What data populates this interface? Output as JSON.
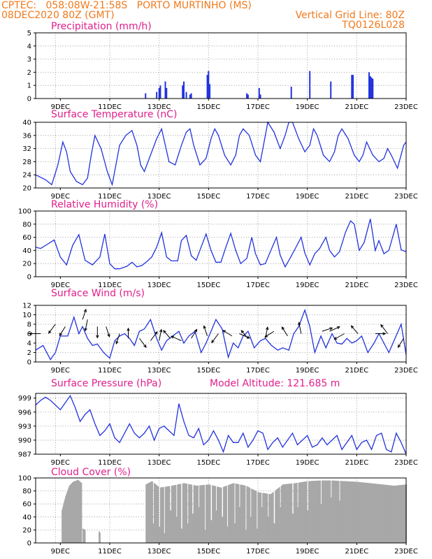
{
  "header": {
    "line1": "CPTEC:   058:08W-21:58S   PORTO MURTINHO (MS)",
    "line2_left": "08DEC2020 80Z (GMT)",
    "line2_right": "Vertical Grid Line: 80Z",
    "line3_right": "TQ0126L028"
  },
  "x_labels": [
    "9DEC",
    "11DEC",
    "13DEC",
    "15DEC",
    "17DEC",
    "19DEC",
    "21DEC",
    "23DEC"
  ],
  "colors": {
    "header": "#f07a1e",
    "title": "#e0208c",
    "series": "#2233dd",
    "cloud": "#a8a8a8"
  },
  "chart_data": [
    {
      "type": "bar",
      "title": "Precipitation (mm/h)",
      "ylim": [
        0,
        5
      ],
      "yticks": [
        0,
        1,
        2,
        3,
        4,
        5
      ],
      "xlim": [
        8.0,
        23.0
      ],
      "x": [
        12.45,
        12.9,
        13.0,
        13.05,
        13.25,
        13.3,
        13.95,
        14.0,
        14.1,
        14.25,
        14.3,
        14.95,
        15.0,
        15.05,
        16.55,
        16.6,
        17.05,
        17.1,
        18.35,
        19.1,
        19.95,
        20.8,
        20.85,
        21.5,
        21.55,
        21.6,
        21.65
      ],
      "values": [
        0.4,
        0.5,
        0.8,
        1.0,
        1.3,
        0.8,
        1.0,
        1.3,
        0.5,
        0.3,
        0.4,
        1.8,
        2.1,
        1.1,
        0.4,
        0.3,
        0.8,
        0.3,
        0.9,
        2.1,
        1.3,
        1.8,
        1.8,
        2.0,
        1.7,
        1.6,
        1.5
      ]
    },
    {
      "type": "line",
      "title": "Surface Temperature (nC)",
      "ylim": [
        20,
        40
      ],
      "yticks": [
        20,
        24,
        28,
        32,
        36,
        40
      ],
      "xlim": [
        8.0,
        23.0
      ],
      "x": [
        8.0,
        8.4,
        8.65,
        8.9,
        9.1,
        9.25,
        9.4,
        9.65,
        9.9,
        10.1,
        10.25,
        10.4,
        10.65,
        10.9,
        11.1,
        11.25,
        11.4,
        11.65,
        11.9,
        12.1,
        12.25,
        12.4,
        12.65,
        12.9,
        13.1,
        13.25,
        13.4,
        13.65,
        13.9,
        14.1,
        14.25,
        14.4,
        14.65,
        14.9,
        15.1,
        15.25,
        15.4,
        15.65,
        15.9,
        16.1,
        16.25,
        16.4,
        16.65,
        16.9,
        17.1,
        17.25,
        17.4,
        17.65,
        17.9,
        18.1,
        18.25,
        18.4,
        18.65,
        18.9,
        19.1,
        19.25,
        19.4,
        19.65,
        19.9,
        20.1,
        20.25,
        20.4,
        20.65,
        20.9,
        21.1,
        21.25,
        21.4,
        21.65,
        21.9,
        22.1,
        22.25,
        22.4,
        22.65,
        22.9,
        23.0
      ],
      "values": [
        24,
        22.5,
        21,
        27,
        34,
        31,
        25,
        22,
        21,
        23,
        30,
        36,
        32,
        25,
        21,
        27,
        33,
        36,
        37.5,
        33,
        27,
        25,
        30,
        35,
        38,
        33,
        28,
        27,
        33,
        37,
        38,
        33,
        27,
        29,
        35,
        38,
        36,
        30,
        27,
        30,
        36,
        38,
        36,
        30,
        28,
        34,
        40,
        37,
        32,
        36,
        40,
        40,
        35,
        31,
        33,
        38,
        36,
        30,
        28,
        31,
        36,
        38,
        35,
        30,
        28,
        30,
        34,
        30,
        28,
        29,
        32,
        30,
        26,
        33,
        34
      ]
    },
    {
      "type": "line",
      "title": "Relative Humidity (%)",
      "ylim": [
        0,
        100
      ],
      "yticks": [
        0,
        20,
        40,
        60,
        80,
        100
      ],
      "xlim": [
        8.0,
        23.0
      ],
      "x": [
        8.0,
        8.2,
        8.5,
        8.75,
        9.0,
        9.25,
        9.5,
        9.75,
        10.0,
        10.3,
        10.6,
        10.8,
        11.0,
        11.2,
        11.4,
        11.7,
        11.9,
        12.1,
        12.3,
        12.5,
        12.7,
        12.9,
        13.1,
        13.3,
        13.5,
        13.75,
        13.9,
        14.1,
        14.3,
        14.5,
        14.7,
        14.9,
        15.1,
        15.3,
        15.5,
        15.7,
        15.9,
        16.1,
        16.3,
        16.55,
        16.75,
        16.9,
        17.1,
        17.3,
        17.5,
        17.75,
        17.9,
        18.1,
        18.3,
        18.5,
        18.75,
        18.9,
        19.1,
        19.3,
        19.5,
        19.75,
        19.9,
        20.1,
        20.3,
        20.55,
        20.75,
        20.9,
        21.1,
        21.3,
        21.55,
        21.75,
        21.9,
        22.1,
        22.3,
        22.6,
        22.8,
        23.0
      ],
      "values": [
        45,
        43,
        50,
        56,
        30,
        18,
        48,
        64,
        25,
        18,
        30,
        65,
        20,
        12,
        12,
        16,
        22,
        15,
        17,
        23,
        30,
        45,
        67,
        30,
        24,
        24,
        55,
        63,
        32,
        25,
        45,
        65,
        40,
        22,
        22,
        45,
        66,
        40,
        20,
        28,
        60,
        35,
        18,
        20,
        38,
        60,
        33,
        15,
        28,
        42,
        60,
        36,
        18,
        35,
        43,
        60,
        40,
        30,
        38,
        68,
        85,
        80,
        40,
        52,
        88,
        40,
        55,
        35,
        40,
        80,
        41,
        38
      ]
    },
    {
      "type": "line",
      "title": "Surface Wind (m/s)",
      "ylim": [
        0,
        12
      ],
      "yticks": [
        0,
        2,
        4,
        6,
        8,
        10,
        12
      ],
      "xlim": [
        8.0,
        23.0
      ],
      "x": [
        8.0,
        8.3,
        8.6,
        8.8,
        9.0,
        9.3,
        9.55,
        9.75,
        9.9,
        10.1,
        10.3,
        10.5,
        10.75,
        11.0,
        11.2,
        11.4,
        11.6,
        11.8,
        12.0,
        12.2,
        12.4,
        12.65,
        12.9,
        13.1,
        13.3,
        13.55,
        13.8,
        14.0,
        14.2,
        14.45,
        14.7,
        14.9,
        15.1,
        15.3,
        15.55,
        15.8,
        16.0,
        16.2,
        16.4,
        16.6,
        16.85,
        17.1,
        17.3,
        17.55,
        17.8,
        18.0,
        18.25,
        18.45,
        18.65,
        18.9,
        19.1,
        19.3,
        19.55,
        19.75,
        20.0,
        20.2,
        20.4,
        20.6,
        20.8,
        21.0,
        21.2,
        21.45,
        21.7,
        21.9,
        22.1,
        22.3,
        22.55,
        22.8,
        23.0
      ],
      "values": [
        2.5,
        3.5,
        0.5,
        2,
        5.5,
        5.5,
        9.5,
        6,
        7.5,
        5,
        3.5,
        3.8,
        2,
        0.8,
        4.5,
        5.5,
        6,
        5,
        3.5,
        6.5,
        7,
        9,
        5,
        2.5,
        4.5,
        5.5,
        6.5,
        4,
        5.5,
        6.5,
        2,
        4,
        6.5,
        9,
        7,
        1,
        4,
        3,
        5.5,
        6.5,
        3,
        4.5,
        5,
        3.5,
        2.5,
        3,
        2.5,
        6,
        7.5,
        11,
        7.5,
        2,
        5.5,
        3,
        6,
        4,
        3.8,
        5,
        4,
        4.5,
        5.5,
        2,
        4,
        6,
        4,
        2,
        5,
        8,
        1.5
      ],
      "arrows": [
        [
          8.2,
          6,
          -1,
          0
        ],
        [
          8.8,
          8,
          -0.6,
          0.8
        ],
        [
          9.2,
          7.5,
          -0.5,
          0.8
        ],
        [
          9.9,
          9,
          0.3,
          -0.9
        ],
        [
          10.1,
          9,
          -0.2,
          1
        ],
        [
          10.5,
          7.5,
          0,
          1
        ],
        [
          10.85,
          7.5,
          0.3,
          0.9
        ],
        [
          11.4,
          6,
          -0.3,
          0.9
        ],
        [
          11.75,
          5,
          0,
          -0.9
        ],
        [
          12.2,
          5,
          0.6,
          0.8
        ],
        [
          12.65,
          4.5,
          0.6,
          -0.8
        ],
        [
          13.0,
          4.5,
          0.2,
          -1
        ],
        [
          13.45,
          5,
          -0.6,
          -0.7
        ],
        [
          13.9,
          4.5,
          -0.9,
          -0.4
        ],
        [
          14.3,
          5,
          0.5,
          -0.8
        ],
        [
          14.95,
          5.5,
          -0.3,
          -0.9
        ],
        [
          15.4,
          6,
          -0.6,
          0.8
        ],
        [
          15.95,
          5.5,
          -0.8,
          -0.5
        ],
        [
          16.25,
          6,
          0.9,
          0.4
        ],
        [
          16.6,
          5,
          -0.6,
          -0.7
        ],
        [
          17.3,
          5,
          0.2,
          -1
        ],
        [
          17.65,
          6.5,
          -0.8,
          0.5
        ],
        [
          18.2,
          5.5,
          -0.5,
          -0.8
        ],
        [
          18.75,
          6,
          -0.2,
          -1
        ],
        [
          19.6,
          6.5,
          0.9,
          -0.3
        ],
        [
          19.9,
          6.5,
          0.9,
          -0.4
        ],
        [
          20.5,
          6,
          -0.9,
          0.5
        ],
        [
          21.05,
          6,
          -0.6,
          -0.7
        ],
        [
          21.75,
          6,
          0.9,
          0
        ],
        [
          22.25,
          6,
          -0.6,
          -0.8
        ],
        [
          22.9,
          5,
          -0.5,
          0.8
        ]
      ]
    },
    {
      "type": "line",
      "title": "Surface Pressure (hPa)",
      "annotation": "Model Altitude: 121.685 m",
      "ylim": [
        987,
        1000
      ],
      "yticks": [
        987,
        990,
        993,
        996,
        999
      ],
      "xlim": [
        8.0,
        23.0
      ],
      "x": [
        8.0,
        8.2,
        8.4,
        8.6,
        8.8,
        9.0,
        9.2,
        9.4,
        9.6,
        9.8,
        10.0,
        10.2,
        10.4,
        10.6,
        10.8,
        11.0,
        11.2,
        11.4,
        11.6,
        11.8,
        12.0,
        12.2,
        12.4,
        12.6,
        12.8,
        13.0,
        13.2,
        13.4,
        13.6,
        13.8,
        14.0,
        14.2,
        14.4,
        14.6,
        14.8,
        15.0,
        15.2,
        15.4,
        15.6,
        15.8,
        16.0,
        16.2,
        16.4,
        16.6,
        16.8,
        17.0,
        17.2,
        17.4,
        17.6,
        17.8,
        18.0,
        18.2,
        18.4,
        18.6,
        18.8,
        19.0,
        19.2,
        19.4,
        19.6,
        19.8,
        20.0,
        20.2,
        20.4,
        20.6,
        20.8,
        21.0,
        21.2,
        21.4,
        21.6,
        21.8,
        22.0,
        22.2,
        22.4,
        22.6,
        22.8,
        23.0
      ],
      "values": [
        997.5,
        998.5,
        999.2,
        998.5,
        997.5,
        996.5,
        998,
        999.5,
        997,
        994,
        995.5,
        996.5,
        993.5,
        991,
        992,
        993.5,
        990.5,
        989.5,
        991.5,
        993.5,
        991.5,
        990.5,
        991.5,
        993,
        990,
        992.5,
        993,
        992,
        991,
        997.8,
        994,
        991,
        990.5,
        992.5,
        989,
        990,
        992,
        990,
        987.5,
        991,
        989.5,
        989.5,
        991.5,
        988.5,
        990,
        992,
        991.5,
        988,
        989.5,
        990.5,
        988.5,
        990,
        991.5,
        989,
        990,
        991,
        988.5,
        989,
        990.5,
        989,
        990,
        991,
        988,
        989.5,
        991,
        988,
        989.5,
        990,
        988,
        991,
        991.5,
        988,
        987.5,
        991.5,
        989.5,
        987
      ]
    },
    {
      "type": "area",
      "title": "Cloud Cover (%)",
      "ylim": [
        0,
        100
      ],
      "yticks": [
        0,
        20,
        40,
        60,
        80,
        100
      ],
      "xlim": [
        8.0,
        23.0
      ],
      "segments": [
        {
          "x": [
            9.05,
            9.2,
            9.35,
            9.5,
            9.7,
            9.85
          ],
          "values": [
            50,
            72,
            88,
            94,
            97,
            92
          ]
        },
        {
          "x": [
            9.9,
            10.0
          ],
          "values": [
            22,
            20
          ]
        },
        {
          "x": [
            10.55,
            10.6
          ],
          "values": [
            18,
            15
          ]
        },
        {
          "x": [
            12.45,
            12.7,
            13.0,
            13.5,
            14.0,
            14.5,
            15.0,
            15.5,
            16.0,
            16.5,
            17.0,
            17.5,
            18.0,
            18.5,
            19.0,
            19.5,
            20.0,
            20.5,
            21.0,
            21.5,
            22.0,
            22.5,
            23.0
          ],
          "values": [
            90,
            95,
            85,
            88,
            92,
            88,
            90,
            85,
            92,
            88,
            78,
            75,
            90,
            92,
            95,
            96,
            96,
            95,
            94,
            92,
            90,
            88,
            90
          ]
        }
      ],
      "dips": [
        [
          12.75,
          30
        ],
        [
          13.0,
          25
        ],
        [
          13.2,
          15
        ],
        [
          13.45,
          50
        ],
        [
          13.7,
          40
        ],
        [
          13.9,
          22
        ],
        [
          14.15,
          30
        ],
        [
          14.35,
          45
        ],
        [
          14.6,
          55
        ],
        [
          14.85,
          20
        ],
        [
          15.1,
          35
        ],
        [
          15.3,
          50
        ],
        [
          15.55,
          40
        ],
        [
          15.75,
          25
        ],
        [
          16.05,
          30
        ],
        [
          16.25,
          55
        ],
        [
          16.5,
          20
        ],
        [
          16.7,
          40
        ],
        [
          16.95,
          22
        ],
        [
          17.15,
          55
        ],
        [
          17.4,
          40
        ],
        [
          17.65,
          30
        ],
        [
          17.9,
          55
        ],
        [
          18.4,
          45
        ],
        [
          18.6,
          55
        ],
        [
          19.0,
          50
        ],
        [
          19.55,
          60
        ],
        [
          19.95,
          70
        ],
        [
          20.3,
          65
        ]
      ]
    }
  ]
}
